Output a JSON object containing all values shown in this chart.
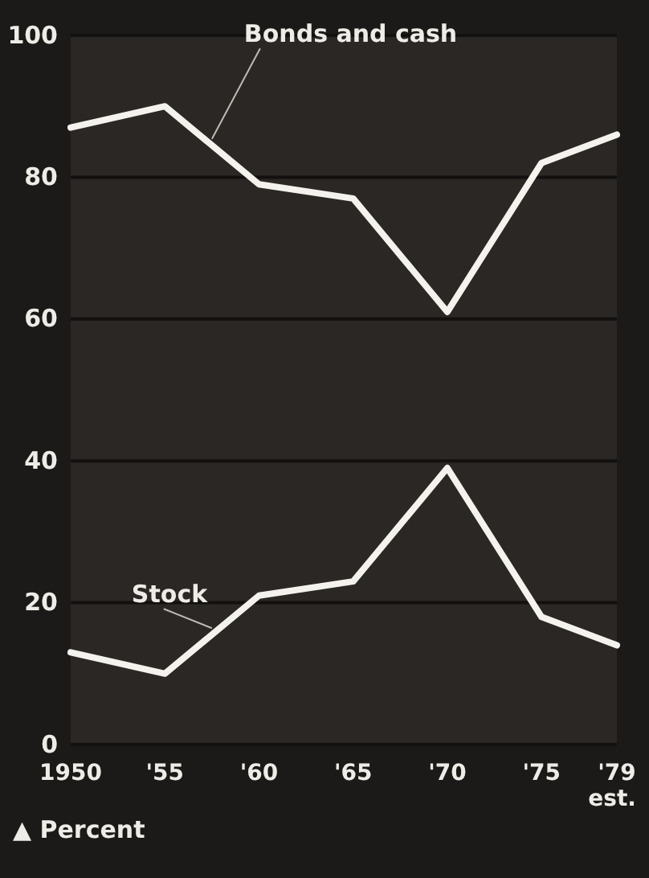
{
  "chart_data": {
    "type": "line",
    "ylabel": "▲ Percent",
    "x": [
      1950,
      1955,
      1960,
      1965,
      1970,
      1975,
      1979
    ],
    "series": [
      {
        "name": "Bonds and cash",
        "color": "#f4f2ec",
        "values": [
          87,
          90,
          79,
          77,
          61,
          82,
          86
        ]
      },
      {
        "name": "Stock",
        "color": "#f4f2ec",
        "values": [
          13,
          10,
          21,
          23,
          39,
          18,
          14
        ]
      }
    ],
    "xlim": [
      1950,
      1979
    ],
    "xticks": [
      {
        "value": 1950,
        "label": "1950"
      },
      {
        "value": 1955,
        "label": "'55"
      },
      {
        "value": 1960,
        "label": "'60"
      },
      {
        "value": 1965,
        "label": "'65"
      },
      {
        "value": 1970,
        "label": "'70"
      },
      {
        "value": 1975,
        "label": "'75"
      },
      {
        "value": 1979,
        "label": "'79"
      }
    ],
    "annotations": [
      "est."
    ],
    "ylim": [
      0,
      100
    ],
    "yticks": [
      0,
      20,
      40,
      60,
      80,
      100
    ],
    "grid": "y",
    "marker": "none",
    "line_style": "solid"
  }
}
